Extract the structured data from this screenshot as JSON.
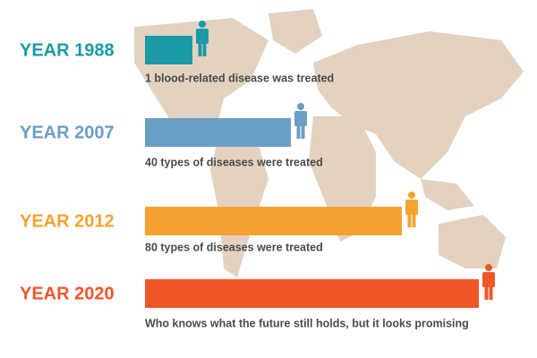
{
  "items": [
    {
      "year": "YEAR 1988",
      "caption": "1 blood-related disease was treated",
      "color": "#1b9aa5"
    },
    {
      "year": "YEAR 2007",
      "caption": "40 types of diseases were treated",
      "color": "#6a9ec3"
    },
    {
      "year": "YEAR 2012",
      "caption": "80 types of diseases were treated",
      "color": "#f5a231"
    },
    {
      "year": "YEAR 2020",
      "caption": "Who knows what the future still holds, but it looks promising",
      "color": "#ef5628"
    }
  ]
}
